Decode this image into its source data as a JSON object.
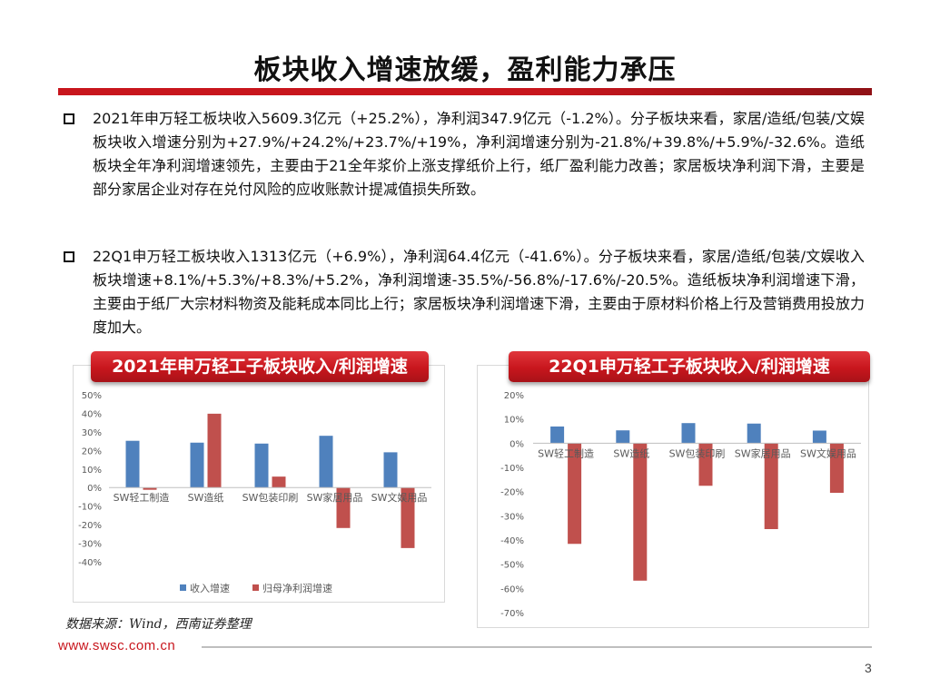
{
  "page": {
    "title": "板块收入增速放缓，盈利能力承压",
    "bullets": [
      "2021年申万轻工板块收入5609.3亿元（+25.2%），净利润347.9亿元（-1.2%）。分子板块来看，家居/造纸/包装/文娱板块收入增速分别为+27.9%/+24.2%/+23.7%/+19%，净利润增速分别为-21.8%/+39.8%/+5.9%/-32.6%。造纸板块全年净利润增速领先，主要由于21全年浆价上涨支撑纸价上行，纸厂盈利能力改善；家居板块净利润下滑，主要是部分家居企业对存在兑付风险的应收账款计提减值损失所致。",
      "22Q1申万轻工板块收入1313亿元（+6.9%），净利润64.4亿元（-41.6%）。分子板块来看，家居/造纸/包装/文娱收入板块增速+8.1%/+5.3%/+8.3%/+5.2%，净利润增速-35.5%/-56.8%/-17.6%/-20.5%。造纸板块净利润增速下滑，主要由于纸厂大宗材料物资及能耗成本同比上行；家居板块净利润增速下滑，主要由于原材料价格上行及营销费用投放力度加大。"
    ],
    "source": "数据来源：Wind，西南证券整理",
    "footer_site": "www.swsc.com.cn",
    "page_number": "3"
  },
  "colors": {
    "accent": "#c8161d",
    "series_revenue": "#4f81bd",
    "series_profit": "#c0504d"
  },
  "chart_data": [
    {
      "type": "bar",
      "title": "2021年申万轻工子板块收入/利润增速",
      "categories": [
        "SW轻工制造",
        "SW造纸",
        "SW包装印刷",
        "SW家居用品",
        "SW文娱用品"
      ],
      "series": [
        {
          "name": "收入增速",
          "values": [
            25.2,
            24.2,
            23.7,
            27.9,
            19.0
          ]
        },
        {
          "name": "归母净利润增速",
          "values": [
            -1.2,
            39.8,
            5.9,
            -21.8,
            -32.6
          ]
        }
      ],
      "ylim": [
        -40,
        50
      ],
      "yticks": [
        -40,
        -30,
        -20,
        -10,
        0,
        10,
        20,
        30,
        40,
        50
      ],
      "ytick_labels": [
        "-40%",
        "-30%",
        "-20%",
        "-10%",
        "0%",
        "10%",
        "20%",
        "30%",
        "40%",
        "50%"
      ],
      "grid": false,
      "legend": "bottom"
    },
    {
      "type": "bar",
      "title": "22Q1申万轻工子板块收入/利润增速",
      "categories": [
        "SW轻工制造",
        "SW造纸",
        "SW包装印刷",
        "SW家居用品",
        "SW文娱用品"
      ],
      "series": [
        {
          "values": [
            6.9,
            5.3,
            8.3,
            8.1,
            5.2
          ]
        },
        {
          "values": [
            -41.6,
            -56.8,
            -17.6,
            -35.5,
            -20.5
          ]
        }
      ],
      "ylim": [
        -70,
        20
      ],
      "yticks": [
        -70,
        -60,
        -50,
        -40,
        -30,
        -20,
        -10,
        0,
        10,
        20
      ],
      "ytick_labels": [
        "-70%",
        "-60%",
        "-50%",
        "-40%",
        "-30%",
        "-20%",
        "-10%",
        "0%",
        "10%",
        "20%"
      ],
      "grid": false,
      "legend": "none"
    }
  ]
}
